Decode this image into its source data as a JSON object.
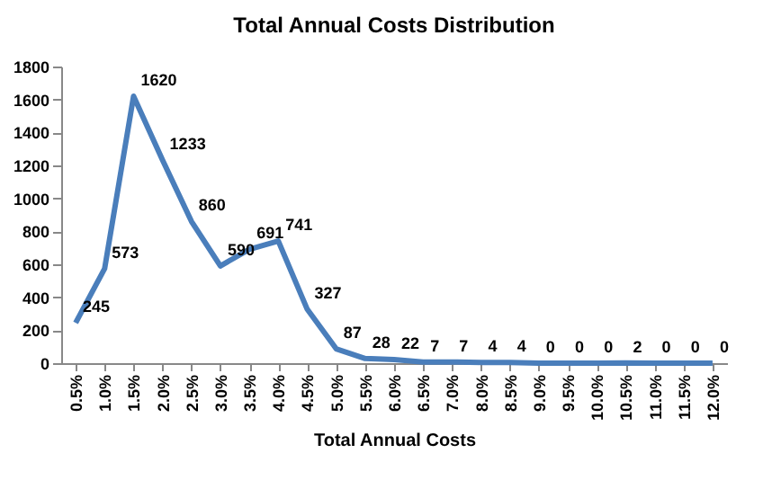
{
  "chart_data": {
    "type": "line",
    "title": "Total Annual Costs Distribution",
    "xlabel": "Total Annual Costs",
    "categories": [
      "0.5%",
      "1.0%",
      "1.5%",
      "2.0%",
      "2.5%",
      "3.0%",
      "3.5%",
      "4.0%",
      "4.5%",
      "5.0%",
      "5.5%",
      "6.0%",
      "6.5%",
      "7.0%",
      "8.0%",
      "8.5%",
      "9.0%",
      "9.5%",
      "10.0%",
      "10.5%",
      "11.0%",
      "11.5%",
      "12.0%"
    ],
    "series": [
      {
        "color": "#4a7ebb",
        "values": [
          245,
          573,
          1620,
          1233,
          860,
          590,
          691,
          741,
          327,
          87,
          28,
          22,
          7,
          7,
          4,
          4,
          0,
          0,
          0,
          2,
          0,
          0,
          0
        ]
      }
    ],
    "ylim": [
      0,
      1800
    ],
    "yticks": [
      0,
      200,
      400,
      600,
      800,
      1000,
      1200,
      1400,
      1600,
      1800
    ],
    "data_labels": true,
    "grid": false,
    "marker": "none",
    "line_style": "solid"
  }
}
